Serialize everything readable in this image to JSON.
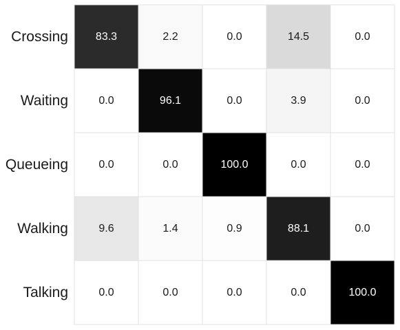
{
  "chart_data": {
    "type": "heatmap",
    "title": "",
    "xlabel": "",
    "ylabel": "",
    "rows": [
      "Crossing",
      "Waiting",
      "Queueing",
      "Walking",
      "Talking"
    ],
    "columns": [
      "",
      "",
      "",
      "",
      ""
    ],
    "values": [
      [
        83.3,
        2.2,
        0.0,
        14.5,
        0.0
      ],
      [
        0.0,
        96.1,
        0.0,
        3.9,
        0.0
      ],
      [
        0.0,
        0.0,
        100.0,
        0.0,
        0.0
      ],
      [
        9.6,
        1.4,
        0.9,
        88.1,
        0.0
      ],
      [
        0.0,
        0.0,
        0.0,
        0.0,
        100.0
      ]
    ],
    "value_range": [
      0,
      100
    ],
    "colormap": {
      "low": "#ffffff",
      "high": "#000000"
    },
    "grid": true,
    "legend": "none"
  }
}
